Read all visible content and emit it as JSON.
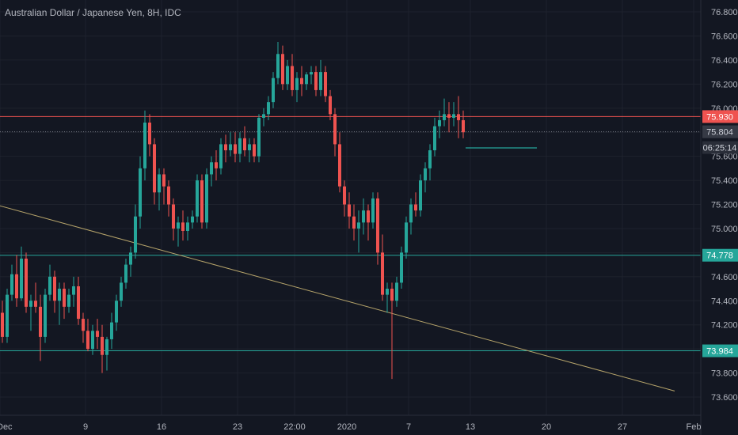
{
  "chart_title": "Australian Dollar / Japanese Yen, 8H, IDC",
  "colors": {
    "background": "#131722",
    "grid": "#1e222d",
    "up": "#26a69a",
    "down": "#ef5350",
    "text": "#b2b5be",
    "trendline": "#b5a36a",
    "support": "#26a69a",
    "resistance": "#ef5350"
  },
  "chart_data": {
    "type": "candlestick",
    "title": "Australian Dollar / Japanese Yen, 8H, IDC",
    "ylim": [
      73.6,
      76.8
    ],
    "y_ticks": [
      "76.800",
      "76.600",
      "76.400",
      "76.200",
      "76.000",
      "75.800",
      "75.600",
      "75.400",
      "75.200",
      "75.000",
      "74.800",
      "74.600",
      "74.400",
      "74.200",
      "74.000",
      "73.800",
      "73.600"
    ],
    "x_ticks": [
      {
        "label": "Dec",
        "i": 0
      },
      {
        "label": "9",
        "i": 18
      },
      {
        "label": "16",
        "i": 34
      },
      {
        "label": "23",
        "i": 50
      },
      {
        "label": "22:00",
        "i": 62
      },
      {
        "label": "2020",
        "i": 73
      },
      {
        "label": "7",
        "i": 86
      },
      {
        "label": "13",
        "i": 99
      },
      {
        "label": "20",
        "i": 115
      },
      {
        "label": "27",
        "i": 131
      },
      {
        "label": "Feb",
        "i": 146
      }
    ],
    "candles": [
      [
        74.3,
        74.4,
        74.05,
        74.1
      ],
      [
        74.1,
        74.5,
        74.05,
        74.45
      ],
      [
        74.45,
        74.7,
        74.4,
        74.62
      ],
      [
        74.62,
        74.78,
        74.35,
        74.42
      ],
      [
        74.42,
        74.85,
        74.4,
        74.75
      ],
      [
        74.75,
        74.8,
        74.3,
        74.35
      ],
      [
        74.35,
        74.45,
        74.15,
        74.4
      ],
      [
        74.4,
        74.55,
        74.3,
        74.35
      ],
      [
        74.35,
        74.45,
        73.9,
        74.1
      ],
      [
        74.1,
        74.5,
        74.05,
        74.45
      ],
      [
        74.45,
        74.7,
        74.4,
        74.6
      ],
      [
        74.6,
        74.65,
        74.3,
        74.4
      ],
      [
        74.4,
        74.55,
        74.2,
        74.5
      ],
      [
        74.5,
        74.55,
        74.25,
        74.35
      ],
      [
        74.35,
        74.5,
        74.3,
        74.45
      ],
      [
        74.45,
        74.6,
        74.35,
        74.52
      ],
      [
        74.52,
        74.6,
        74.2,
        74.25
      ],
      [
        74.25,
        74.3,
        74.05,
        74.15
      ],
      [
        74.15,
        74.25,
        73.98,
        74.0
      ],
      [
        74.0,
        74.2,
        73.95,
        74.15
      ],
      [
        74.15,
        74.25,
        74.0,
        74.1
      ],
      [
        74.1,
        74.2,
        73.8,
        73.95
      ],
      [
        73.95,
        74.1,
        73.82,
        74.08
      ],
      [
        74.08,
        74.3,
        74.0,
        74.22
      ],
      [
        74.22,
        74.45,
        74.15,
        74.4
      ],
      [
        74.4,
        74.6,
        74.35,
        74.55
      ],
      [
        74.55,
        74.75,
        74.5,
        74.7
      ],
      [
        74.7,
        74.85,
        74.6,
        74.8
      ],
      [
        74.8,
        75.2,
        74.75,
        75.1
      ],
      [
        75.1,
        75.6,
        75.0,
        75.5
      ],
      [
        75.5,
        75.98,
        75.4,
        75.88
      ],
      [
        75.88,
        75.95,
        75.6,
        75.7
      ],
      [
        75.7,
        75.75,
        75.2,
        75.3
      ],
      [
        75.3,
        75.5,
        75.15,
        75.45
      ],
      [
        75.45,
        75.5,
        75.2,
        75.35
      ],
      [
        75.35,
        75.4,
        75.1,
        75.2
      ],
      [
        75.2,
        75.25,
        74.9,
        75.0
      ],
      [
        75.0,
        75.1,
        74.85,
        75.05
      ],
      [
        75.05,
        75.15,
        74.9,
        74.98
      ],
      [
        74.98,
        75.1,
        74.9,
        75.05
      ],
      [
        75.05,
        75.15,
        75.0,
        75.1
      ],
      [
        75.1,
        75.45,
        75.05,
        75.4
      ],
      [
        75.4,
        75.45,
        75.0,
        75.05
      ],
      [
        75.05,
        75.5,
        75.0,
        75.45
      ],
      [
        75.45,
        75.6,
        75.35,
        75.55
      ],
      [
        75.55,
        75.65,
        75.4,
        75.5
      ],
      [
        75.5,
        75.75,
        75.45,
        75.7
      ],
      [
        75.7,
        75.78,
        75.55,
        75.65
      ],
      [
        75.65,
        75.8,
        75.6,
        75.7
      ],
      [
        75.7,
        75.8,
        75.55,
        75.62
      ],
      [
        75.62,
        75.8,
        75.55,
        75.75
      ],
      [
        75.75,
        75.85,
        75.6,
        75.65
      ],
      [
        75.65,
        75.75,
        75.55,
        75.7
      ],
      [
        75.7,
        75.75,
        75.55,
        75.6
      ],
      [
        75.6,
        75.95,
        75.55,
        75.92
      ],
      [
        75.92,
        76.0,
        75.85,
        75.95
      ],
      [
        75.95,
        76.1,
        75.9,
        76.05
      ],
      [
        76.05,
        76.3,
        76.0,
        76.25
      ],
      [
        76.25,
        76.55,
        76.2,
        76.45
      ],
      [
        76.45,
        76.52,
        76.15,
        76.2
      ],
      [
        76.2,
        76.4,
        76.15,
        76.35
      ],
      [
        76.35,
        76.45,
        76.1,
        76.15
      ],
      [
        76.15,
        76.3,
        76.05,
        76.25
      ],
      [
        76.25,
        76.35,
        76.1,
        76.2
      ],
      [
        76.2,
        76.3,
        76.15,
        76.28
      ],
      [
        76.28,
        76.35,
        76.2,
        76.3
      ],
      [
        76.3,
        76.35,
        76.1,
        76.15
      ],
      [
        76.15,
        76.4,
        76.1,
        76.3
      ],
      [
        76.3,
        76.35,
        76.05,
        76.1
      ],
      [
        76.1,
        76.15,
        75.9,
        75.95
      ],
      [
        75.95,
        76.0,
        75.6,
        75.7
      ],
      [
        75.7,
        75.8,
        75.3,
        75.35
      ],
      [
        75.35,
        75.4,
        75.1,
        75.2
      ],
      [
        75.2,
        75.3,
        75.0,
        75.1
      ],
      [
        75.1,
        75.2,
        74.9,
        75.0
      ],
      [
        75.0,
        75.15,
        74.8,
        75.05
      ],
      [
        75.05,
        75.25,
        74.95,
        75.15
      ],
      [
        75.15,
        75.2,
        74.9,
        75.05
      ],
      [
        75.05,
        75.3,
        75.0,
        75.25
      ],
      [
        75.25,
        75.3,
        74.7,
        74.8
      ],
      [
        74.8,
        74.95,
        74.4,
        74.45
      ],
      [
        74.45,
        74.55,
        74.3,
        74.5
      ],
      [
        74.5,
        74.55,
        73.75,
        74.4
      ],
      [
        74.4,
        74.6,
        74.35,
        74.55
      ],
      [
        74.55,
        74.85,
        74.5,
        74.8
      ],
      [
        74.8,
        75.1,
        74.75,
        75.05
      ],
      [
        75.05,
        75.25,
        74.95,
        75.2
      ],
      [
        75.2,
        75.3,
        75.1,
        75.15
      ],
      [
        75.15,
        75.45,
        75.1,
        75.4
      ],
      [
        75.4,
        75.55,
        75.3,
        75.5
      ],
      [
        75.5,
        75.7,
        75.4,
        75.65
      ],
      [
        75.65,
        75.92,
        75.6,
        75.85
      ],
      [
        75.85,
        75.98,
        75.75,
        75.9
      ],
      [
        75.9,
        76.08,
        75.85,
        75.95
      ],
      [
        75.95,
        76.05,
        75.8,
        75.92
      ],
      [
        75.92,
        76.05,
        75.85,
        75.95
      ],
      [
        75.95,
        76.1,
        75.75,
        75.9
      ],
      [
        75.9,
        75.98,
        75.75,
        75.8
      ]
    ],
    "current_price": 75.804,
    "current_price_label": "75.804",
    "countdown_label": "06:25:14",
    "levels": [
      {
        "name": "resistance",
        "price": 75.93,
        "label": "75.930",
        "color": "#ef5350"
      },
      {
        "name": "support",
        "price": 74.778,
        "label": "74.778",
        "color": "#26a69a"
      },
      {
        "name": "support",
        "price": 73.984,
        "label": "73.984",
        "color": "#26a69a"
      }
    ],
    "trendline": {
      "from": {
        "i": -2,
        "price": 75.21
      },
      "to": {
        "i": 142,
        "price": 73.65
      }
    },
    "target_segment": {
      "from_i": 98,
      "to_i": 113,
      "price": 75.67
    }
  }
}
